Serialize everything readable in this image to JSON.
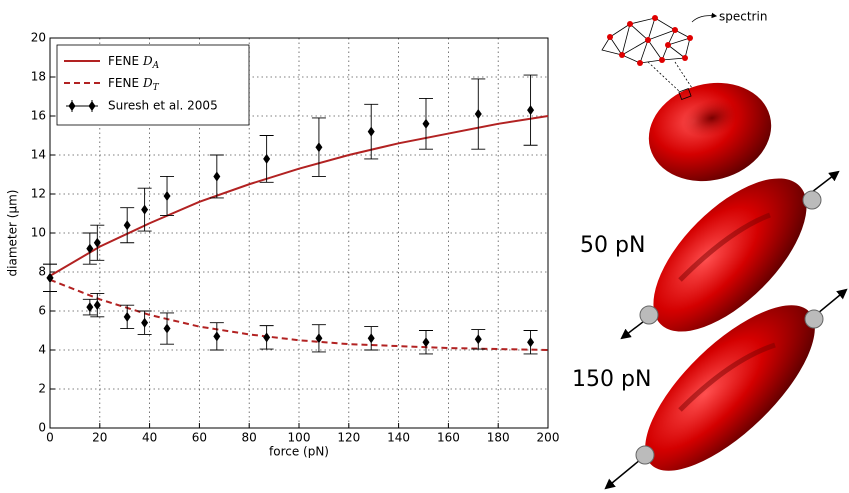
{
  "chart_data": {
    "type": "line",
    "x_label": "force (pN)",
    "y_label": "diameter (μm)",
    "xlim": [
      0,
      200
    ],
    "xticks": [
      0,
      20,
      40,
      60,
      80,
      100,
      120,
      140,
      160,
      180,
      200
    ],
    "ylim": [
      0,
      20
    ],
    "yticks": [
      0,
      2,
      4,
      6,
      8,
      10,
      12,
      14,
      16,
      18,
      20
    ],
    "grid": true,
    "legend": "upper-left",
    "x": [
      0,
      20,
      40,
      60,
      80,
      100,
      120,
      140,
      160,
      180,
      200
    ],
    "series": [
      {
        "name": "FENE",
        "name_symbol": "D",
        "name_subscript": "A",
        "color": "#b22222",
        "dashed": false,
        "values": [
          7.8,
          9.3,
          10.5,
          11.6,
          12.5,
          13.3,
          14.0,
          14.6,
          15.1,
          15.6,
          16.0
        ]
      },
      {
        "name": "FENE",
        "name_symbol": "D",
        "name_subscript": "T",
        "color": "#b22222",
        "dashed": true,
        "values": [
          7.6,
          6.6,
          5.8,
          5.2,
          4.8,
          4.5,
          4.3,
          4.2,
          4.1,
          4.05,
          4.0
        ]
      }
    ],
    "measurements": {
      "name": "Suresh et al. 2005",
      "color": "#000000",
      "x": [
        0,
        16,
        19,
        31,
        38,
        47,
        67,
        87,
        108,
        129,
        151,
        172,
        193
      ],
      "axial": [
        7.7,
        9.2,
        9.5,
        10.4,
        11.2,
        11.9,
        12.9,
        13.8,
        14.4,
        15.2,
        15.6,
        16.1,
        16.3
      ],
      "axial_errors": [
        0.7,
        0.8,
        0.9,
        0.9,
        1.1,
        1.0,
        1.1,
        1.2,
        1.5,
        1.4,
        1.3,
        1.8,
        1.8
      ],
      "transverse": [
        7.7,
        6.2,
        6.3,
        5.7,
        5.4,
        5.1,
        4.7,
        4.65,
        4.6,
        4.6,
        4.4,
        4.55,
        4.4
      ],
      "transverse_errors": [
        0.7,
        0.4,
        0.6,
        0.6,
        0.6,
        0.8,
        0.7,
        0.6,
        0.7,
        0.6,
        0.6,
        0.5,
        0.6
      ]
    }
  },
  "illustration": {
    "network_label": "spectrin",
    "force_labels": [
      "50 pN",
      "150 pN"
    ]
  }
}
